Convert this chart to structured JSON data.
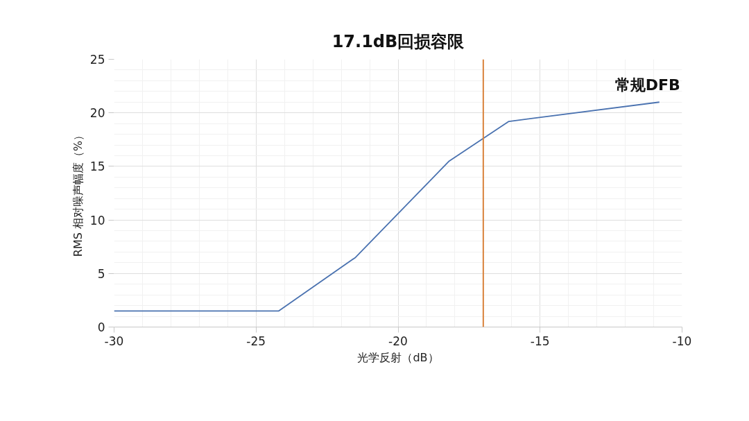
{
  "chart_data": {
    "type": "line",
    "xlabel": "光学反射（dB）",
    "ylabel": "RMS 相对噪声幅度（%）",
    "x": [
      -30,
      -24.2,
      -21.5,
      -18.2,
      -16.1,
      -10.8
    ],
    "series": [
      {
        "name": "常规DFB",
        "color": "#4a72b0",
        "values": [
          1.5,
          1.5,
          6.5,
          15.5,
          19.2,
          21
        ]
      }
    ],
    "xlim": [
      -30,
      -10
    ],
    "ylim": [
      0,
      25
    ],
    "xticks": [
      -30,
      -25,
      -20,
      -15,
      -10
    ],
    "yticks": [
      0,
      5,
      10,
      15,
      20,
      25
    ],
    "ref_lines": [
      {
        "axis": "x",
        "value": -17,
        "label": "17.1dB回损容限",
        "color": "#d9823b"
      }
    ],
    "grid": true,
    "marker": "none",
    "line_style": "solid"
  }
}
